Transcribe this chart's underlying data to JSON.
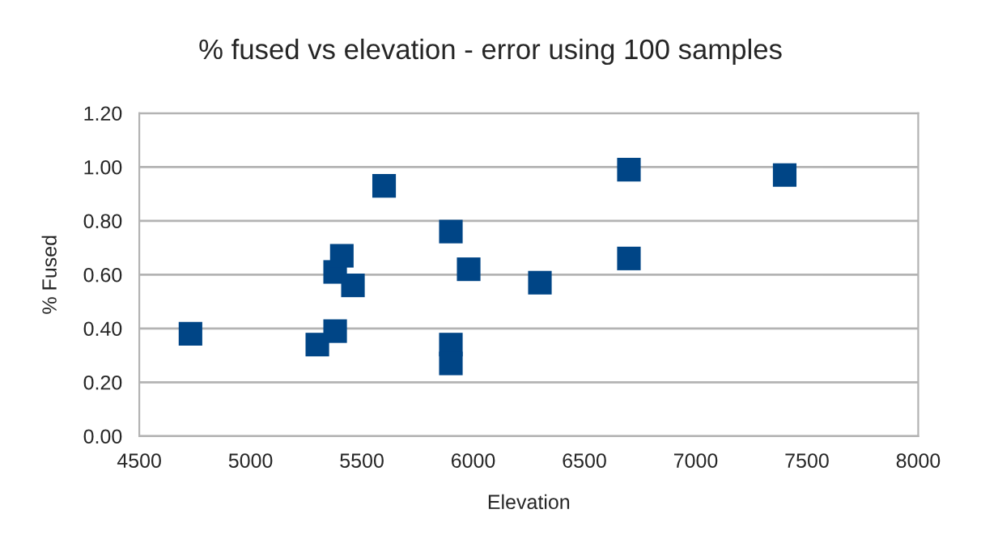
{
  "chart_data": {
    "type": "scatter",
    "title": "% fused vs elevation - error using 100 samples",
    "xlabel": "Elevation",
    "ylabel": "% Fused",
    "x": [
      4730,
      5300,
      5380,
      5380,
      5410,
      5460,
      5600,
      5900,
      5980,
      5900,
      5900,
      6300,
      6700,
      6700,
      7400
    ],
    "values": [
      0.38,
      0.34,
      0.39,
      0.61,
      0.67,
      0.56,
      0.93,
      0.76,
      0.62,
      0.34,
      0.27,
      0.57,
      0.99,
      0.66,
      0.97
    ],
    "color": "#004586",
    "marker": "square",
    "xlim": [
      4500,
      8000
    ],
    "xticks": [
      4500,
      5000,
      5500,
      6000,
      6500,
      7000,
      7500,
      8000
    ],
    "ylim": [
      0,
      1.2
    ],
    "yticks": [
      {
        "value": 0,
        "label": "0.00"
      },
      {
        "value": 0.2,
        "label": "0.20"
      },
      {
        "value": 0.4,
        "label": "0.40"
      },
      {
        "value": 0.6,
        "label": "0.60"
      },
      {
        "value": 0.8,
        "label": "0.80"
      },
      {
        "value": 1.0,
        "label": "1.00"
      },
      {
        "value": 1.2,
        "label": "1.20"
      }
    ],
    "grid": "y",
    "legend": false
  }
}
